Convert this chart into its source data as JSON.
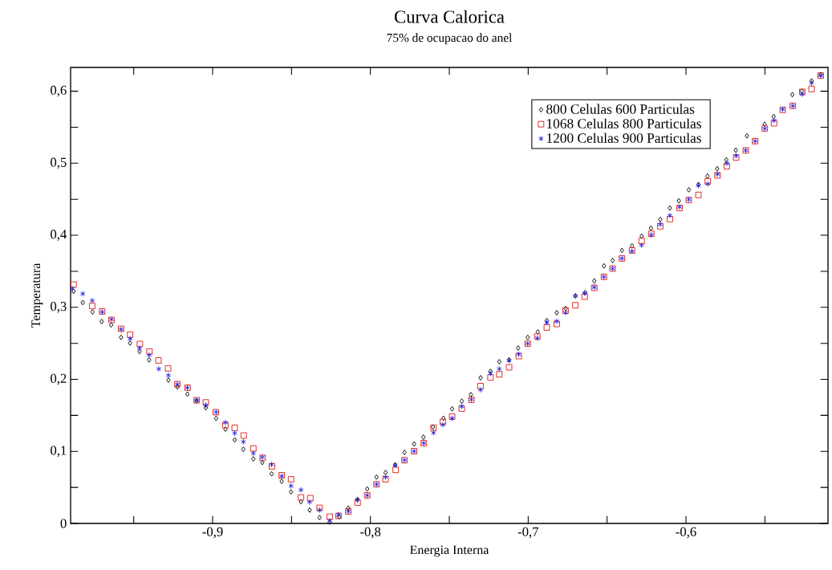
{
  "chart_data": {
    "type": "scatter",
    "title": "Curva Calorica",
    "subtitle": "75% de ocupacao do anel",
    "xlabel": "Energia Interna",
    "ylabel": "Temperatura",
    "xlim": [
      -0.99,
      -0.51
    ],
    "ylim": [
      0,
      0.633
    ],
    "xticks": [
      {
        "value": -0.95,
        "label": null
      },
      {
        "value": -0.9,
        "label": "-0,9"
      },
      {
        "value": -0.85,
        "label": null
      },
      {
        "value": -0.8,
        "label": "-0,8"
      },
      {
        "value": -0.75,
        "label": null
      },
      {
        "value": -0.7,
        "label": "-0,7"
      },
      {
        "value": -0.65,
        "label": null
      },
      {
        "value": -0.6,
        "label": "-0,6"
      },
      {
        "value": -0.55,
        "label": null
      }
    ],
    "yticks": [
      0,
      {
        "value": 0.05,
        "label": null
      },
      {
        "value": 0.1,
        "label": "0,1"
      },
      {
        "value": 0.15,
        "label": null
      },
      {
        "value": 0.2,
        "label": "0,2"
      },
      {
        "value": 0.25,
        "label": null
      },
      {
        "value": 0.3,
        "label": "0,3"
      },
      {
        "value": 0.35,
        "label": null
      },
      {
        "value": 0.4,
        "label": "0,4"
      },
      {
        "value": 0.45,
        "label": null
      },
      {
        "value": 0.5,
        "label": "0,5"
      },
      {
        "value": 0.55,
        "label": null
      },
      {
        "value": 0.6,
        "label": "0,6"
      }
    ],
    "legend": "top right",
    "series": [
      {
        "name": "800 Celulas  600 Particulas",
        "color": "#000000",
        "marker": "diamond",
        "x": [
          -0.9881,
          -0.9823,
          -0.9761,
          -0.9703,
          -0.9643,
          -0.958,
          -0.9523,
          -0.9463,
          -0.9402,
          -0.928,
          -0.9223,
          -0.916,
          -0.9101,
          -0.9043,
          -0.8978,
          -0.8919,
          -0.886,
          -0.8805,
          -0.8742,
          -0.8685,
          -0.8626,
          -0.8562,
          -0.8503,
          -0.844,
          -0.8385,
          -0.8322,
          -0.8258,
          -0.8199,
          -0.814,
          -0.8082,
          -0.802,
          -0.7961,
          -0.7904,
          -0.7843,
          -0.7784,
          -0.7723,
          -0.7664,
          -0.7603,
          -0.7537,
          -0.7482,
          -0.7421,
          -0.7364,
          -0.7302,
          -0.7239,
          -0.7183,
          -0.7121,
          -0.7064,
          -0.7003,
          -0.6939,
          -0.6882,
          -0.6819,
          -0.6763,
          -0.6701,
          -0.6639,
          -0.6581,
          -0.652,
          -0.6465,
          -0.6406,
          -0.6342,
          -0.6281,
          -0.6222,
          -0.6163,
          -0.6102,
          -0.6045,
          -0.5982,
          -0.5921,
          -0.5864,
          -0.5802,
          -0.5744,
          -0.5684,
          -0.5614,
          -0.5501,
          -0.5444,
          -0.5326,
          -0.5265,
          -0.5204,
          -0.5146
        ],
        "values": [
          0.3222,
          0.3066,
          0.2936,
          0.2803,
          0.2754,
          0.2583,
          0.2505,
          0.2386,
          0.2271,
          0.1989,
          0.1895,
          0.1795,
          0.1702,
          0.1605,
          0.1457,
          0.1309,
          0.1159,
          0.103,
          0.0896,
          0.0847,
          0.0688,
          0.0584,
          0.0439,
          0.0301,
          0.0186,
          0.0082,
          0.0019,
          0.0094,
          0.0212,
          0.0328,
          0.0479,
          0.0643,
          0.0707,
          0.0814,
          0.0986,
          0.1104,
          0.1197,
          0.1338,
          0.146,
          0.1591,
          0.1699,
          0.1788,
          0.2022,
          0.2111,
          0.2245,
          0.2271,
          0.2435,
          0.2583,
          0.2658,
          0.2817,
          0.2925,
          0.2984,
          0.3159,
          0.3204,
          0.3367,
          0.3575,
          0.365,
          0.379,
          0.3854,
          0.3988,
          0.4099,
          0.4219,
          0.4378,
          0.4478,
          0.4631,
          0.4705,
          0.4821,
          0.4924,
          0.5047,
          0.5181,
          0.5381,
          0.5541,
          0.5649,
          0.5953,
          0.6002,
          0.6143,
          0.6232
        ]
      },
      {
        "name": "1068 Celulas 800 Particulas",
        "color": "#e0201b",
        "marker": "square",
        "x": [
          -0.9881,
          -0.9763,
          -0.97,
          -0.9641,
          -0.958,
          -0.9523,
          -0.9461,
          -0.94,
          -0.9343,
          -0.9282,
          -0.9223,
          -0.9159,
          -0.9101,
          -0.9043,
          -0.898,
          -0.8919,
          -0.886,
          -0.8803,
          -0.8742,
          -0.8683,
          -0.8624,
          -0.8562,
          -0.8503,
          -0.844,
          -0.8381,
          -0.8322,
          -0.8258,
          -0.8202,
          -0.814,
          -0.8081,
          -0.802,
          -0.7961,
          -0.7904,
          -0.784,
          -0.7784,
          -0.7723,
          -0.7662,
          -0.76,
          -0.7541,
          -0.7482,
          -0.7421,
          -0.736,
          -0.7302,
          -0.7239,
          -0.7183,
          -0.7121,
          -0.706,
          -0.7003,
          -0.6942,
          -0.6882,
          -0.6819,
          -0.6763,
          -0.6701,
          -0.6642,
          -0.6581,
          -0.652,
          -0.6465,
          -0.6406,
          -0.6342,
          -0.6281,
          -0.622,
          -0.6163,
          -0.6102,
          -0.6041,
          -0.5982,
          -0.5921,
          -0.5862,
          -0.58,
          -0.5741,
          -0.5682,
          -0.5621,
          -0.5562,
          -0.5501,
          -0.5442,
          -0.5387,
          -0.5323,
          -0.5263,
          -0.5204,
          -0.5146
        ],
        "values": [
          0.3316,
          0.3018,
          0.2943,
          0.2825,
          0.2702,
          0.262,
          0.2491,
          0.2386,
          0.2263,
          0.2152,
          0.1933,
          0.1884,
          0.171,
          0.168,
          0.1543,
          0.1365,
          0.1327,
          0.122,
          0.1041,
          0.0911,
          0.0792,
          0.0669,
          0.0613,
          0.0361,
          0.035,
          0.0216,
          0.0094,
          0.0105,
          0.0167,
          0.029,
          0.039,
          0.0543,
          0.0613,
          0.0744,
          0.0877,
          0.1003,
          0.1115,
          0.1329,
          0.1409,
          0.1483,
          0.1594,
          0.1717,
          0.1906,
          0.2026,
          0.207,
          0.2167,
          0.2323,
          0.2494,
          0.2594,
          0.272,
          0.2769,
          0.2954,
          0.3029,
          0.3148,
          0.3271,
          0.3423,
          0.3538,
          0.3679,
          0.379,
          0.3921,
          0.4021,
          0.4125,
          0.4225,
          0.4378,
          0.4489,
          0.456,
          0.4749,
          0.4832,
          0.4958,
          0.508,
          0.5177,
          0.5307,
          0.5482,
          0.5556,
          0.5741,
          0.5797,
          0.5991,
          0.6031,
          0.6217
        ]
      },
      {
        "name": "1200 Celulas 900 Particulas",
        "color": "#1a1ae6",
        "marker": "cross",
        "x": [
          -0.9889,
          -0.9823,
          -0.9763,
          -0.97,
          -0.9641,
          -0.958,
          -0.9523,
          -0.9463,
          -0.9402,
          -0.9341,
          -0.928,
          -0.9223,
          -0.916,
          -0.9101,
          -0.9043,
          -0.8978,
          -0.8919,
          -0.886,
          -0.8805,
          -0.8742,
          -0.8685,
          -0.8626,
          -0.8562,
          -0.8503,
          -0.844,
          -0.8385,
          -0.8322,
          -0.8258,
          -0.8202,
          -0.814,
          -0.8082,
          -0.802,
          -0.7961,
          -0.7904,
          -0.7843,
          -0.7784,
          -0.7723,
          -0.7662,
          -0.76,
          -0.7541,
          -0.7482,
          -0.7421,
          -0.736,
          -0.7302,
          -0.7239,
          -0.7183,
          -0.7121,
          -0.706,
          -0.7003,
          -0.6942,
          -0.6882,
          -0.6819,
          -0.6763,
          -0.6701,
          -0.6642,
          -0.6581,
          -0.652,
          -0.6465,
          -0.6406,
          -0.6342,
          -0.6281,
          -0.622,
          -0.6163,
          -0.6102,
          -0.6041,
          -0.5982,
          -0.5921,
          -0.5862,
          -0.58,
          -0.5741,
          -0.5682,
          -0.5621,
          -0.5562,
          -0.5501,
          -0.5442,
          -0.5387,
          -0.5323,
          -0.5263,
          -0.5204,
          -0.5146
        ],
        "values": [
          0.326,
          0.3188,
          0.3093,
          0.2936,
          0.2832,
          0.2695,
          0.2564,
          0.2435,
          0.2338,
          0.2145,
          0.2056,
          0.1933,
          0.1884,
          0.171,
          0.1643,
          0.1543,
          0.1401,
          0.1253,
          0.1134,
          0.0974,
          0.0919,
          0.0818,
          0.0658,
          0.0521,
          0.0465,
          0.0298,
          0.0186,
          0.0038,
          0.0123,
          0.0167,
          0.0334,
          0.039,
          0.0543,
          0.0643,
          0.0807,
          0.0877,
          0.1003,
          0.1115,
          0.1259,
          0.1371,
          0.146,
          0.1624,
          0.1721,
          0.1855,
          0.2081,
          0.2145,
          0.226,
          0.2349,
          0.2494,
          0.2572,
          0.2787,
          0.2806,
          0.2925,
          0.3159,
          0.3196,
          0.3278,
          0.3423,
          0.3538,
          0.3679,
          0.3779,
          0.3862,
          0.4007,
          0.4152,
          0.4274,
          0.4392,
          0.4497,
          0.469,
          0.4712,
          0.4849,
          0.4999,
          0.5103,
          0.5177,
          0.5307,
          0.5482,
          0.5593,
          0.5749,
          0.5797,
          0.5958,
          0.6114,
          0.6217
        ]
      }
    ]
  }
}
